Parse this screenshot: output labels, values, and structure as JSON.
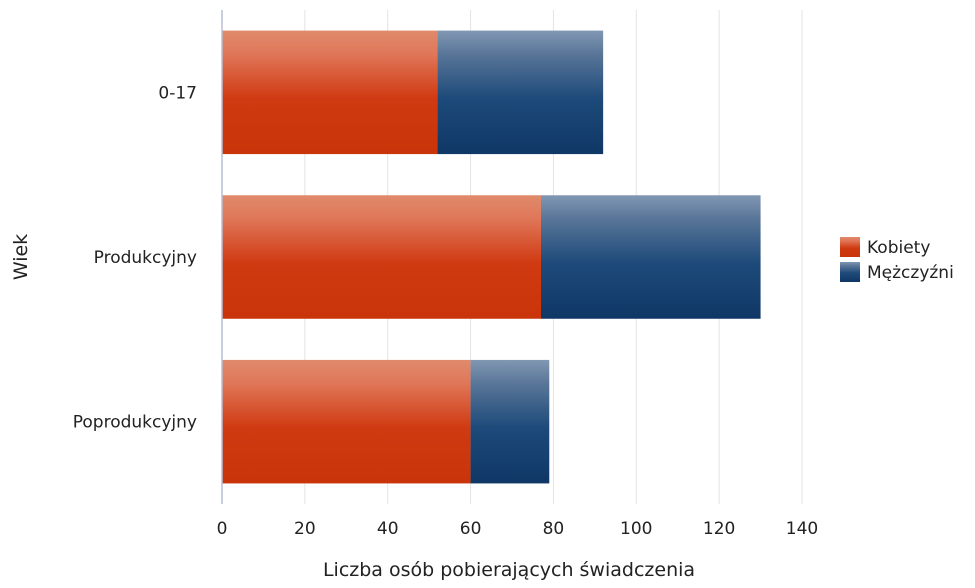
{
  "chart_data": {
    "type": "bar",
    "orientation": "horizontal",
    "stacked": true,
    "title": "",
    "xlabel": "Liczba osób pobierających świadczenia",
    "ylabel": "Wiek",
    "categories": [
      "0-17",
      "Produkcyjny",
      "Poprodukcyjny"
    ],
    "series": [
      {
        "name": "Kobiety",
        "values": [
          52,
          77,
          60
        ],
        "color": "#d03a12"
      },
      {
        "name": "Mężczyźni",
        "values": [
          40,
          53,
          19
        ],
        "color": "#1d4a7a"
      }
    ],
    "xlim": [
      0,
      140
    ],
    "xticks": [
      "0",
      "20",
      "40",
      "60",
      "80",
      "100",
      "120",
      "140"
    ],
    "grid": "vertical",
    "legend_position": "right"
  }
}
